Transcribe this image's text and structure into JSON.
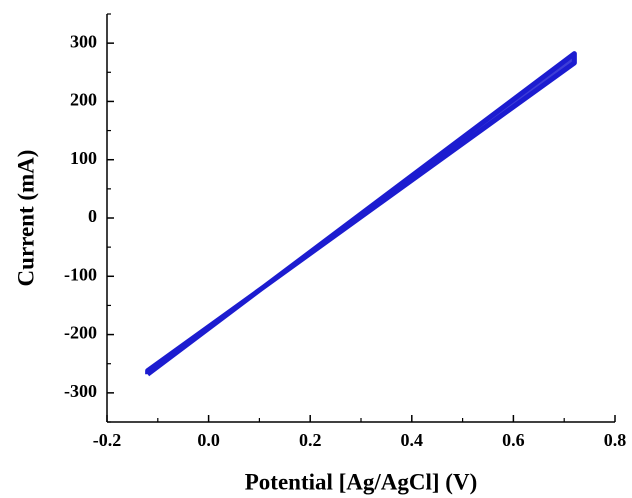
{
  "chart_data": {
    "type": "line",
    "xlabel": "Potential [Ag/AgCl] (V)",
    "ylabel": "Current (mA)",
    "x": [
      -0.12,
      0.72,
      0.72,
      -0.12,
      -0.12
    ],
    "series": [
      {
        "color": "#1c1cd0",
        "values": [
          -268,
          282,
          266,
          -262,
          -268
        ]
      }
    ],
    "xlim": [
      -0.2,
      0.8
    ],
    "xticks": [
      {
        "value": -0.2,
        "label": "-0.2"
      },
      {
        "value": 0,
        "label": "0.0"
      },
      {
        "value": 0.2,
        "label": "0.2"
      },
      {
        "value": 0.4,
        "label": "0.4"
      },
      {
        "value": 0.6,
        "label": "0.6"
      },
      {
        "value": 0.8,
        "label": "0.8"
      }
    ],
    "ylim": [
      -350,
      350
    ],
    "yticks": [
      -300,
      -200,
      -100,
      0,
      100,
      200,
      300
    ]
  }
}
